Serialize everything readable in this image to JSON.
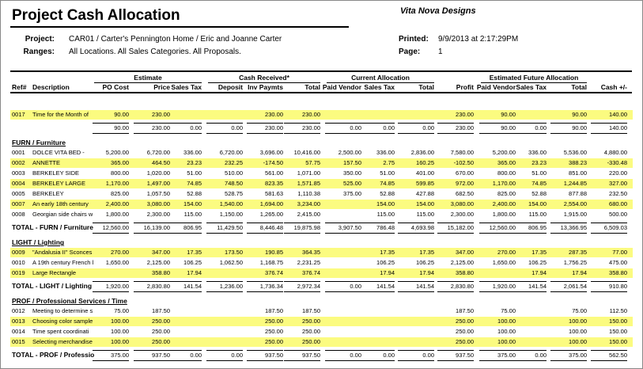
{
  "header": {
    "title": "Project Cash Allocation",
    "company": "Vita Nova Designs",
    "project_label": "Project:",
    "project": "CAR01 / Carter's Pennington Home / Eric and Joanne Carter",
    "ranges_label": "Ranges:",
    "ranges": "All Locations.  All Sales Categories.  All Proposals.",
    "printed_label": "Printed:",
    "printed": "9/9/2013 at 2:17:29PM",
    "page_label": "Page:",
    "page": 1
  },
  "table": {
    "groups": [
      "Estimate",
      "Cash Received*",
      "Current Allocation",
      "Estimated Future Allocation"
    ],
    "columns": [
      "Ref#",
      "Description",
      "PO Cost",
      "Price",
      "Sales Tax",
      "Deposit",
      "Inv Paymts",
      "Total",
      "Paid Vendor",
      "Sales Tax",
      "Total",
      "Profit",
      "Paid Vendor",
      "Sales Tax",
      "Total",
      "Cash +/-"
    ],
    "sections": [
      {
        "rows": [
          {
            "ref": "0017",
            "description": "Time for the Month of",
            "highlight": true,
            "values": [
              "90.00",
              "230.00",
              null,
              null,
              "230.00",
              "230.00",
              null,
              null,
              null,
              "230.00",
              "90.00",
              null,
              "90.00",
              "140.00"
            ]
          }
        ],
        "total": {
          "values": [
            "90.00",
            "230.00",
            "0.00",
            "0.00",
            "230.00",
            "230.00",
            "0.00",
            "0.00",
            "0.00",
            "230.00",
            "90.00",
            "0.00",
            "90.00",
            "140.00"
          ]
        }
      },
      {
        "name": "FURN / Furniture",
        "rows": [
          {
            "ref": "0001",
            "description": "DOLCE VITA BED -",
            "highlight": false,
            "values": [
              "5,200.00",
              "6,720.00",
              "336.00",
              "6,720.00",
              "3,696.00",
              "10,416.00",
              "2,500.00",
              "336.00",
              "2,836.00",
              "7,580.00",
              "5,200.00",
              "336.00",
              "5,536.00",
              "4,880.00"
            ]
          },
          {
            "ref": "0002",
            "description": "ANNETTE",
            "highlight": true,
            "values": [
              "365.00",
              "464.50",
              "23.23",
              "232.25",
              "-174.50",
              "57.75",
              "157.50",
              "2.75",
              "160.25",
              "-102.50",
              "365.00",
              "23.23",
              "388.23",
              "-330.48"
            ]
          },
          {
            "ref": "0003",
            "description": "BERKELEY SIDE",
            "highlight": false,
            "values": [
              "800.00",
              "1,020.00",
              "51.00",
              "510.00",
              "561.00",
              "1,071.00",
              "350.00",
              "51.00",
              "401.00",
              "670.00",
              "800.00",
              "51.00",
              "851.00",
              "220.00"
            ]
          },
          {
            "ref": "0004",
            "description": "BERKELEY LARGE",
            "highlight": true,
            "values": [
              "1,170.00",
              "1,497.00",
              "74.85",
              "748.50",
              "823.35",
              "1,571.85",
              "525.00",
              "74.85",
              "599.85",
              "972.00",
              "1,170.00",
              "74.85",
              "1,244.85",
              "327.00"
            ]
          },
          {
            "ref": "0005",
            "description": "BERKELEY",
            "highlight": false,
            "values": [
              "825.00",
              "1,057.50",
              "52.88",
              "528.75",
              "581.63",
              "1,110.38",
              "375.00",
              "52.88",
              "427.88",
              "682.50",
              "825.00",
              "52.88",
              "877.88",
              "232.50"
            ]
          },
          {
            "ref": "0007",
            "description": "An early 18th century",
            "highlight": true,
            "values": [
              "2,400.00",
              "3,080.00",
              "154.00",
              "1,540.00",
              "1,694.00",
              "3,234.00",
              null,
              "154.00",
              "154.00",
              "3,080.00",
              "2,400.00",
              "154.00",
              "2,554.00",
              "680.00"
            ]
          },
          {
            "ref": "0008",
            "description": "Georgian side chairs w",
            "highlight": false,
            "values": [
              "1,800.00",
              "2,300.00",
              "115.00",
              "1,150.00",
              "1,265.00",
              "2,415.00",
              null,
              "115.00",
              "115.00",
              "2,300.00",
              "1,800.00",
              "115.00",
              "1,915.00",
              "500.00"
            ]
          }
        ],
        "total": {
          "label": "TOTAL - FURN / Furniture",
          "values": [
            "12,560.00",
            "16,139.00",
            "806.95",
            "11,429.50",
            "8,446.48",
            "19,875.98",
            "3,907.50",
            "786.48",
            "4,693.98",
            "15,182.00",
            "12,560.00",
            "806.95",
            "13,366.95",
            "6,509.03"
          ]
        }
      },
      {
        "name": "LIGHT / Lighting",
        "rows": [
          {
            "ref": "0009",
            "description": "\"Andalusia II\" Sconces",
            "highlight": true,
            "values": [
              "270.00",
              "347.00",
              "17.35",
              "173.50",
              "190.85",
              "364.35",
              null,
              "17.35",
              "17.35",
              "347.00",
              "270.00",
              "17.35",
              "287.35",
              "77.00"
            ]
          },
          {
            "ref": "0010",
            "description": "A 19th century French l",
            "highlight": false,
            "values": [
              "1,650.00",
              "2,125.00",
              "106.25",
              "1,062.50",
              "1,168.75",
              "2,231.25",
              null,
              "106.25",
              "106.25",
              "2,125.00",
              "1,650.00",
              "106.25",
              "1,756.25",
              "475.00"
            ]
          },
          {
            "ref": "0019",
            "description": "Large Rectangle",
            "highlight": true,
            "values": [
              null,
              "358.80",
              "17.94",
              null,
              "376.74",
              "376.74",
              null,
              "17.94",
              "17.94",
              "358.80",
              null,
              "17.94",
              "17.94",
              "358.80"
            ]
          }
        ],
        "total": {
          "label": "TOTAL - LIGHT / Lighting",
          "values": [
            "1,920.00",
            "2,830.80",
            "141.54",
            "1,236.00",
            "1,736.34",
            "2,972.34",
            "0.00",
            "141.54",
            "141.54",
            "2,830.80",
            "1,920.00",
            "141.54",
            "2,061.54",
            "910.80"
          ]
        }
      },
      {
        "name": "PROF / Professional Services / Time",
        "rows": [
          {
            "ref": "0012",
            "description": "Meeting to determine s",
            "highlight": false,
            "values": [
              "75.00",
              "187.50",
              null,
              null,
              "187.50",
              "187.50",
              null,
              null,
              null,
              "187.50",
              "75.00",
              null,
              "75.00",
              "112.50"
            ]
          },
          {
            "ref": "0013",
            "description": "Choosing color sample",
            "highlight": true,
            "values": [
              "100.00",
              "250.00",
              null,
              null,
              "250.00",
              "250.00",
              null,
              null,
              null,
              "250.00",
              "100.00",
              null,
              "100.00",
              "150.00"
            ]
          },
          {
            "ref": "0014",
            "description": "Time spent coordinati",
            "highlight": false,
            "values": [
              "100.00",
              "250.00",
              null,
              null,
              "250.00",
              "250.00",
              null,
              null,
              null,
              "250.00",
              "100.00",
              null,
              "100.00",
              "150.00"
            ]
          },
          {
            "ref": "0015",
            "description": "Selecting merchandise",
            "highlight": true,
            "values": [
              "100.00",
              "250.00",
              null,
              null,
              "250.00",
              "250.00",
              null,
              null,
              null,
              "250.00",
              "100.00",
              null,
              "100.00",
              "150.00"
            ]
          }
        ],
        "total": {
          "label": "TOTAL - PROF / Professio",
          "values": [
            "375.00",
            "937.50",
            "0.00",
            "0.00",
            "937.50",
            "937.50",
            "0.00",
            "0.00",
            "0.00",
            "937.50",
            "375.00",
            "0.00",
            "375.00",
            "562.50"
          ]
        }
      }
    ]
  }
}
